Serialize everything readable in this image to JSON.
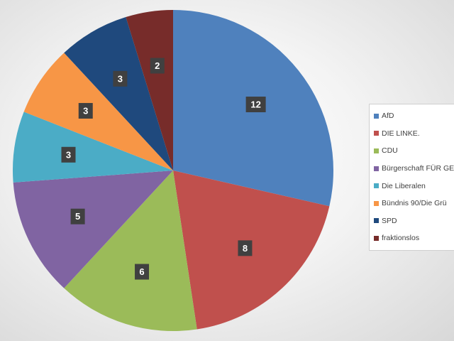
{
  "chart_data": {
    "type": "pie",
    "categories": [
      "AfD",
      "DIE LINKE.",
      "CDU",
      "Bürgerschaft FÜR GE",
      "Die Liberalen",
      "Bündnis 90/Die Grü",
      "SPD",
      "fraktionslos"
    ],
    "values": [
      12,
      8,
      6,
      5,
      3,
      3,
      3,
      2
    ],
    "data_labels": [
      "12",
      "8",
      "6",
      "5",
      "3",
      "3",
      "3",
      "2"
    ],
    "colors": [
      "#4f81bd",
      "#c0504d",
      "#9bbb59",
      "#8064a2",
      "#4bacc6",
      "#f79646",
      "#1f497d",
      "#772c2a"
    ],
    "legend_position": "right",
    "title": ""
  }
}
